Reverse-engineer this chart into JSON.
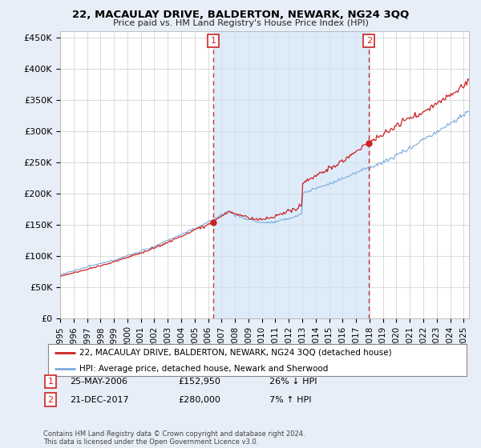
{
  "title": "22, MACAULAY DRIVE, BALDERTON, NEWARK, NG24 3QQ",
  "subtitle": "Price paid vs. HM Land Registry's House Price Index (HPI)",
  "ylabel_ticks": [
    "£0",
    "£50K",
    "£100K",
    "£150K",
    "£200K",
    "£250K",
    "£300K",
    "£350K",
    "£400K",
    "£450K"
  ],
  "ytick_values": [
    0,
    50000,
    100000,
    150000,
    200000,
    250000,
    300000,
    350000,
    400000,
    450000
  ],
  "ylim": [
    0,
    460000
  ],
  "xlim_start": 1995.0,
  "xlim_end": 2025.4,
  "sale1_date": 2006.38,
  "sale1_price": 152950,
  "sale2_date": 2017.97,
  "sale2_price": 280000,
  "hpi_color": "#7aaadd",
  "price_color": "#cc2222",
  "shade_color": "#d0e4f7",
  "vline_color": "#cc3333",
  "background_color": "#e8eef8",
  "plot_bg": "#ffffff",
  "legend_label_price": "22, MACAULAY DRIVE, BALDERTON, NEWARK, NG24 3QQ (detached house)",
  "legend_label_hpi": "HPI: Average price, detached house, Newark and Sherwood",
  "footer": "Contains HM Land Registry data © Crown copyright and database right 2024.\nThis data is licensed under the Open Government Licence v3.0.",
  "xtick_years": [
    1995,
    1996,
    1997,
    1998,
    1999,
    2000,
    2001,
    2002,
    2003,
    2004,
    2005,
    2006,
    2007,
    2008,
    2009,
    2010,
    2011,
    2012,
    2013,
    2014,
    2015,
    2016,
    2017,
    2018,
    2019,
    2020,
    2021,
    2022,
    2023,
    2024,
    2025
  ]
}
